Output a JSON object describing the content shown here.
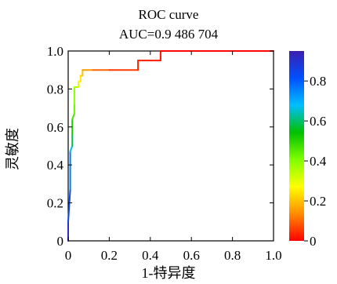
{
  "chart_data": {
    "type": "line",
    "title": "ROC curve",
    "subtitle": "AUC=0.9 486 704",
    "xlabel": "1-特异度",
    "ylabel": "灵敏度",
    "xlim": [
      0,
      1
    ],
    "ylim": [
      0,
      1
    ],
    "xticks": [
      "0",
      "0.2",
      "0.4",
      "0.6",
      "0.8",
      "1.0"
    ],
    "yticks": [
      "0",
      "0.2",
      "0.4",
      "0.6",
      "0.8",
      "1.0"
    ],
    "grid": false,
    "legend": "none",
    "colorbar": {
      "range": [
        0,
        0.95
      ],
      "ticks": [
        "0",
        "0.2",
        "0.4",
        "0.6",
        "0.8"
      ],
      "colormap": [
        "#ff0000",
        "#ff8c00",
        "#ffff00",
        "#7fff00",
        "#00c000",
        "#00bfff",
        "#0050ff",
        "#3c1fb0"
      ]
    },
    "series": [
      {
        "points": [
          {
            "x": 0.0,
            "y": 0.0,
            "t": 0.95
          },
          {
            "x": 0.0,
            "y": 0.1,
            "t": 0.88
          },
          {
            "x": 0.01,
            "y": 0.27,
            "t": 0.8
          },
          {
            "x": 0.01,
            "y": 0.47,
            "t": 0.72
          },
          {
            "x": 0.02,
            "y": 0.5,
            "t": 0.62
          },
          {
            "x": 0.02,
            "y": 0.56,
            "t": 0.55
          },
          {
            "x": 0.02,
            "y": 0.64,
            "t": 0.48
          },
          {
            "x": 0.03,
            "y": 0.67,
            "t": 0.45
          },
          {
            "x": 0.03,
            "y": 0.72,
            "t": 0.42
          },
          {
            "x": 0.03,
            "y": 0.81,
            "t": 0.38
          },
          {
            "x": 0.05,
            "y": 0.81,
            "t": 0.33
          },
          {
            "x": 0.05,
            "y": 0.84,
            "t": 0.29
          },
          {
            "x": 0.06,
            "y": 0.84,
            "t": 0.26
          },
          {
            "x": 0.06,
            "y": 0.87,
            "t": 0.23
          },
          {
            "x": 0.07,
            "y": 0.87,
            "t": 0.21
          },
          {
            "x": 0.07,
            "y": 0.9,
            "t": 0.19
          },
          {
            "x": 0.12,
            "y": 0.9,
            "t": 0.12
          },
          {
            "x": 0.2,
            "y": 0.9,
            "t": 0.07
          },
          {
            "x": 0.34,
            "y": 0.9,
            "t": 0.04
          },
          {
            "x": 0.34,
            "y": 0.95,
            "t": 0.03
          },
          {
            "x": 0.45,
            "y": 0.95,
            "t": 0.02
          },
          {
            "x": 0.45,
            "y": 1.0,
            "t": 0.01
          },
          {
            "x": 1.0,
            "y": 1.0,
            "t": 0.0
          }
        ]
      }
    ]
  }
}
